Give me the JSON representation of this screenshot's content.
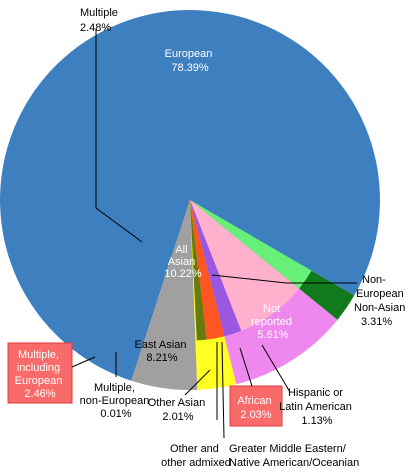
{
  "chart_data": {
    "type": "pie",
    "title": "",
    "slices": [
      {
        "name": "European",
        "value": 78.39,
        "pct": "78.39%",
        "color": "#3e7fc0"
      },
      {
        "name": "Multiple",
        "value": 2.48,
        "pct": "2.48%",
        "color": "#117a1d"
      },
      {
        "name": "All Asian",
        "value": 10.22,
        "pct": "10.22%",
        "color": "#ee88ee"
      },
      {
        "name": "Non-European Non-Asian",
        "value": 3.31,
        "pct": "3.31%",
        "color": "#ffff22"
      },
      {
        "name": "Not reported",
        "value": 5.61,
        "pct": "5.61%",
        "color": "#a0a0a0"
      }
    ],
    "subslices": [
      {
        "name": "Multiple, including European",
        "value": 2.46,
        "pct": "2.46%",
        "color": "#66f07a"
      },
      {
        "name": "Multiple, non-European",
        "value": 0.01,
        "pct": "0.01%",
        "color": "#8ef088"
      },
      {
        "name": "East Asian",
        "value": 8.21,
        "pct": "8.21%",
        "color": "#ffb0cc"
      },
      {
        "name": "Other Asian",
        "value": 2.01,
        "pct": "2.01%",
        "color": "#9a58e0"
      },
      {
        "name": "Other and other admixed",
        "value": 0.0,
        "pct": "",
        "color": "#ffcc66"
      },
      {
        "name": "Greater Middle Eastern/ Native American/Oceanian",
        "value": 0.0,
        "pct": "",
        "color": "#ffe080"
      },
      {
        "name": "African",
        "value": 2.03,
        "pct": "2.03%",
        "color": "#ff5522"
      },
      {
        "name": "Hispanic or Latin American",
        "value": 1.13,
        "pct": "1.13%",
        "color": "#667a10"
      }
    ]
  },
  "labels": {
    "european": [
      "European",
      "78.39%"
    ],
    "multiple": [
      "Multiple",
      "2.48%"
    ],
    "all_asian": [
      "All",
      "Asian",
      "10.22%"
    ],
    "non_european_non_asian": [
      "Non-",
      "European",
      "Non-Asian",
      "3.31%"
    ],
    "not_reported": [
      "Not",
      "reported",
      "5.61%"
    ],
    "multiple_including_european": [
      "Multiple,",
      "including",
      "European",
      "2.46%"
    ],
    "multiple_non_european": [
      "Multiple,",
      "non-European",
      "0.01%"
    ],
    "east_asian": [
      "East Asian",
      "8.21%"
    ],
    "other_asian": [
      "Other Asian",
      "2.01%"
    ],
    "other_admixed": [
      "Other and",
      "other admixed"
    ],
    "greater_middle_eastern": [
      "Greater Middle Eastern/",
      "Native American/Oceanian"
    ],
    "african": [
      "African",
      "2.03%"
    ],
    "hispanic": [
      "Hispanic or",
      "Latin American",
      "1.13%"
    ]
  }
}
